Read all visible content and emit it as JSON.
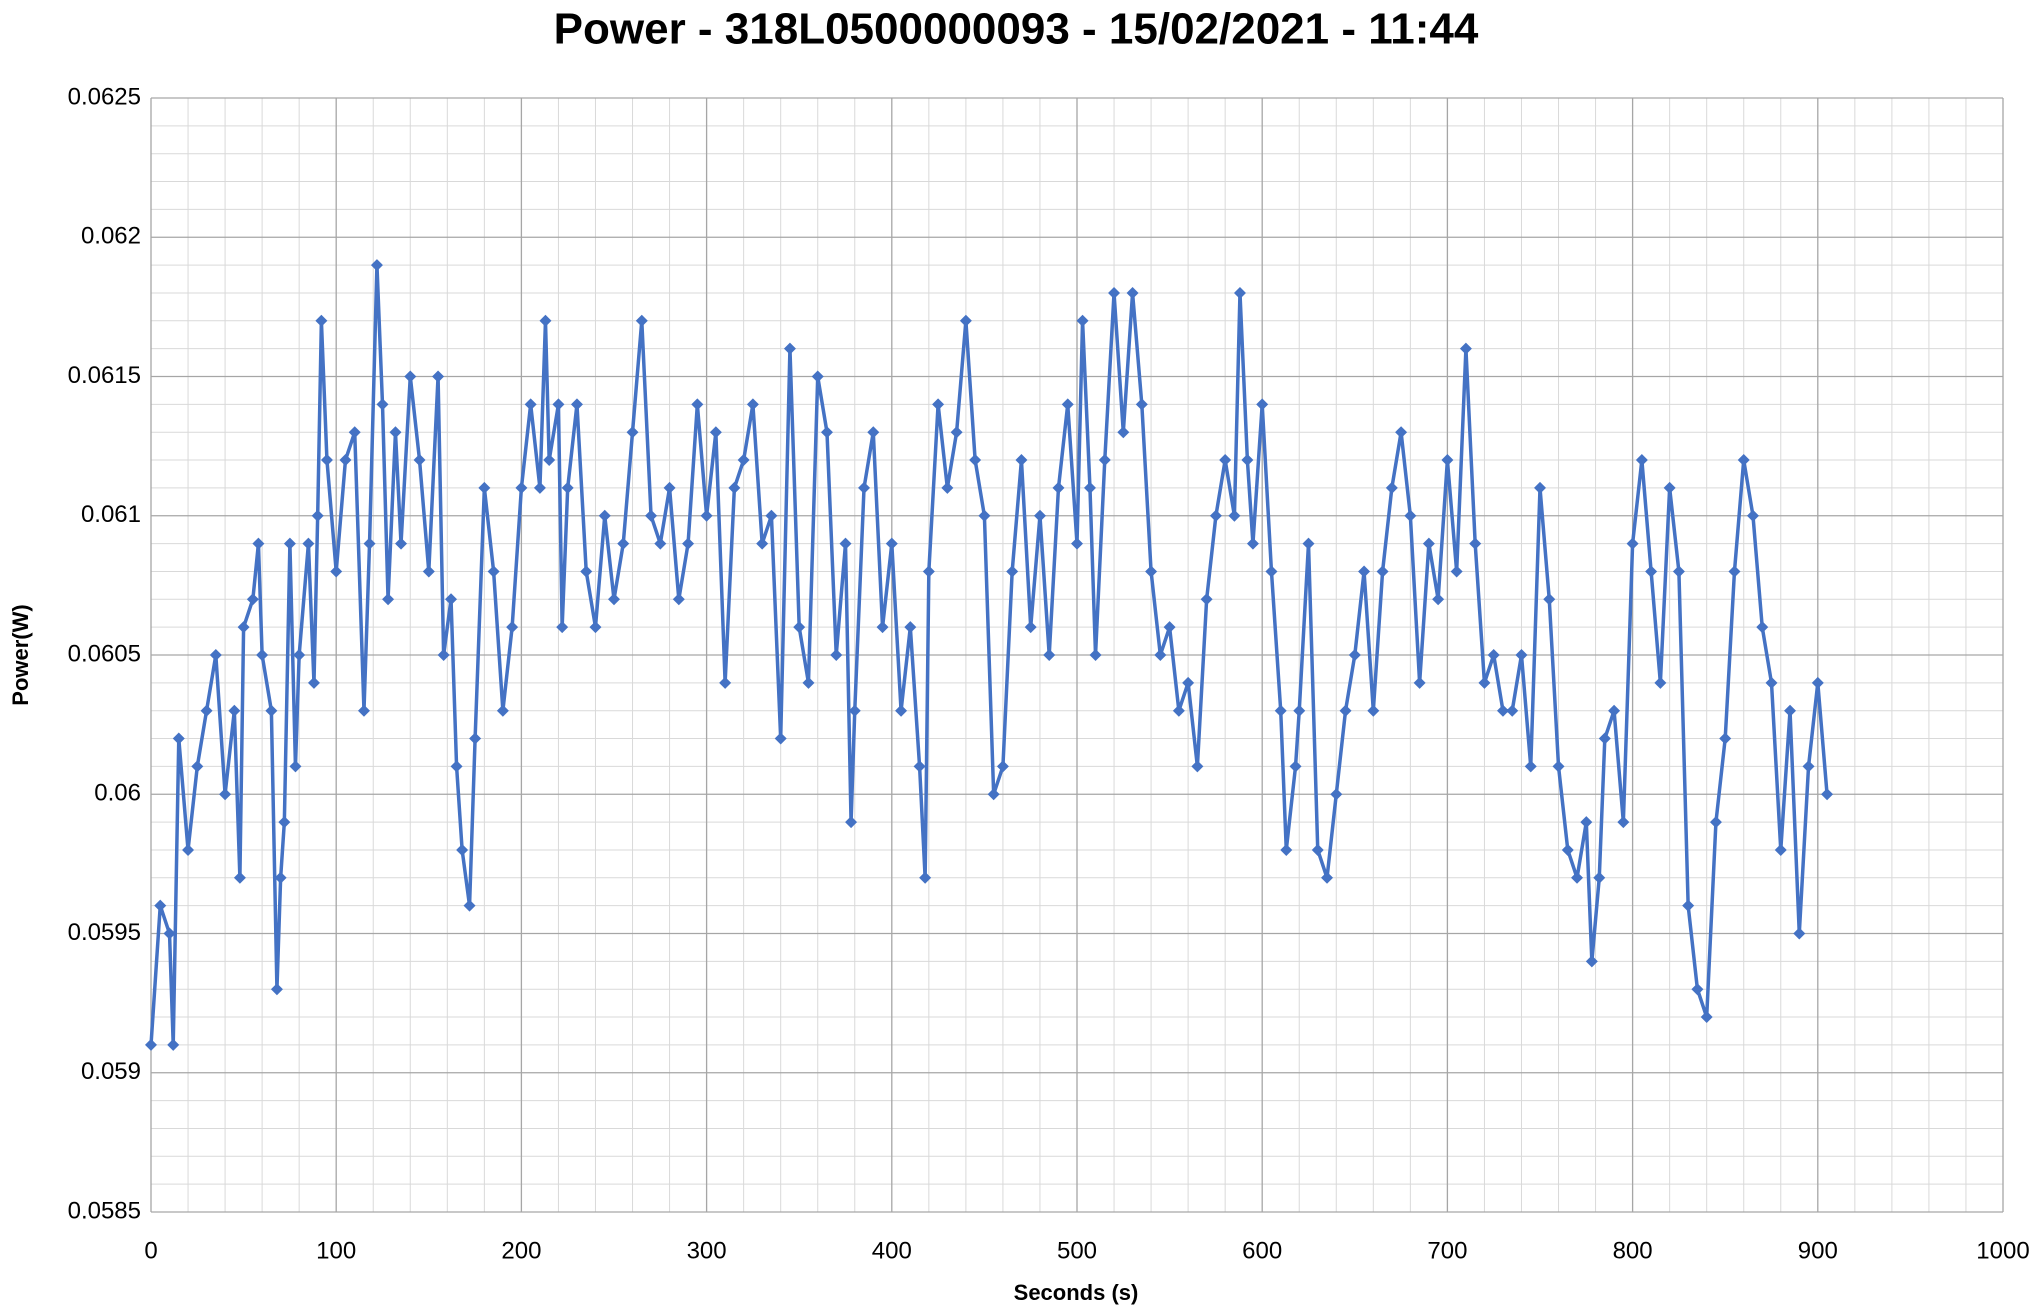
{
  "chart_data": {
    "type": "line",
    "title": "Power - 318L0500000093 - 15/02/2021 - 11:44",
    "x_label": "Seconds (s)",
    "y_label": "Power(W)",
    "color": "#4472c4",
    "marker": "diamond",
    "grid": true,
    "minor_grid": true,
    "xlim": [
      0,
      1000
    ],
    "xticks": [
      0,
      100,
      200,
      300,
      400,
      500,
      600,
      700,
      800,
      900,
      1000
    ],
    "ylim": [
      0.0585,
      0.0625
    ],
    "yticks": [
      0.0585,
      0.059,
      0.0595,
      0.06,
      0.0605,
      0.061,
      0.0615,
      0.062,
      0.0625
    ],
    "x": [
      0,
      5,
      10,
      12,
      15,
      20,
      25,
      30,
      35,
      40,
      45,
      48,
      50,
      55,
      58,
      60,
      65,
      68,
      70,
      72,
      75,
      78,
      80,
      85,
      88,
      90,
      92,
      95,
      100,
      105,
      110,
      115,
      118,
      122,
      125,
      128,
      132,
      135,
      140,
      145,
      150,
      155,
      158,
      162,
      165,
      168,
      172,
      175,
      180,
      185,
      190,
      195,
      200,
      205,
      210,
      213,
      215,
      220,
      222,
      225,
      230,
      235,
      240,
      245,
      250,
      255,
      260,
      265,
      270,
      275,
      280,
      285,
      290,
      295,
      300,
      305,
      310,
      315,
      320,
      325,
      330,
      335,
      340,
      345,
      350,
      355,
      360,
      365,
      370,
      375,
      378,
      380,
      385,
      390,
      395,
      400,
      405,
      410,
      415,
      418,
      420,
      425,
      430,
      435,
      440,
      445,
      450,
      455,
      460,
      465,
      470,
      475,
      480,
      485,
      490,
      495,
      500,
      503,
      507,
      510,
      515,
      520,
      525,
      530,
      535,
      540,
      545,
      550,
      555,
      560,
      565,
      570,
      575,
      580,
      585,
      588,
      592,
      595,
      600,
      605,
      610,
      613,
      618,
      620,
      625,
      630,
      635,
      640,
      645,
      650,
      655,
      660,
      665,
      670,
      675,
      680,
      685,
      690,
      695,
      700,
      705,
      710,
      715,
      720,
      725,
      730,
      735,
      740,
      745,
      750,
      755,
      760,
      765,
      770,
      775,
      778,
      782,
      785,
      790,
      795,
      800,
      805,
      810,
      815,
      820,
      825,
      830,
      835,
      840,
      845,
      850,
      855,
      860,
      865,
      870,
      875,
      880,
      885,
      890,
      895,
      900,
      905
    ],
    "values": [
      0.0591,
      0.0596,
      0.0595,
      0.0591,
      0.0602,
      0.0598,
      0.0601,
      0.0603,
      0.0605,
      0.06,
      0.0603,
      0.0597,
      0.0606,
      0.0607,
      0.0609,
      0.0605,
      0.0603,
      0.0593,
      0.0597,
      0.0599,
      0.0609,
      0.0601,
      0.0605,
      0.0609,
      0.0604,
      0.061,
      0.0617,
      0.0612,
      0.0608,
      0.0612,
      0.0613,
      0.0603,
      0.0609,
      0.0619,
      0.0614,
      0.0607,
      0.0613,
      0.0609,
      0.0615,
      0.0612,
      0.0608,
      0.0615,
      0.0605,
      0.0607,
      0.0601,
      0.0598,
      0.0596,
      0.0602,
      0.0611,
      0.0608,
      0.0603,
      0.0606,
      0.0611,
      0.0614,
      0.0611,
      0.0617,
      0.0612,
      0.0614,
      0.0606,
      0.0611,
      0.0614,
      0.0608,
      0.0606,
      0.061,
      0.0607,
      0.0609,
      0.0613,
      0.0617,
      0.061,
      0.0609,
      0.0611,
      0.0607,
      0.0609,
      0.0614,
      0.061,
      0.0613,
      0.0604,
      0.0611,
      0.0612,
      0.0614,
      0.0609,
      0.061,
      0.0602,
      0.0616,
      0.0606,
      0.0604,
      0.0615,
      0.0613,
      0.0605,
      0.0609,
      0.0599,
      0.0603,
      0.0611,
      0.0613,
      0.0606,
      0.0609,
      0.0603,
      0.0606,
      0.0601,
      0.0597,
      0.0608,
      0.0614,
      0.0611,
      0.0613,
      0.0617,
      0.0612,
      0.061,
      0.06,
      0.0601,
      0.0608,
      0.0612,
      0.0606,
      0.061,
      0.0605,
      0.0611,
      0.0614,
      0.0609,
      0.0617,
      0.0611,
      0.0605,
      0.0612,
      0.0618,
      0.0613,
      0.0618,
      0.0614,
      0.0608,
      0.0605,
      0.0606,
      0.0603,
      0.0604,
      0.0601,
      0.0607,
      0.061,
      0.0612,
      0.061,
      0.0618,
      0.0612,
      0.0609,
      0.0614,
      0.0608,
      0.0603,
      0.0598,
      0.0601,
      0.0603,
      0.0609,
      0.0598,
      0.0597,
      0.06,
      0.0603,
      0.0605,
      0.0608,
      0.0603,
      0.0608,
      0.0611,
      0.0613,
      0.061,
      0.0604,
      0.0609,
      0.0607,
      0.0612,
      0.0608,
      0.0616,
      0.0609,
      0.0604,
      0.0605,
      0.0603,
      0.0603,
      0.0605,
      0.0601,
      0.0611,
      0.0607,
      0.0601,
      0.0598,
      0.0597,
      0.0599,
      0.0594,
      0.0597,
      0.0602,
      0.0603,
      0.0599,
      0.0609,
      0.0612,
      0.0608,
      0.0604,
      0.0611,
      0.0608,
      0.0596,
      0.0593,
      0.0592,
      0.0599,
      0.0602,
      0.0608,
      0.0612,
      0.061,
      0.0606,
      0.0604,
      0.0598,
      0.0603,
      0.0595,
      0.0601,
      0.0604,
      0.06
    ]
  }
}
